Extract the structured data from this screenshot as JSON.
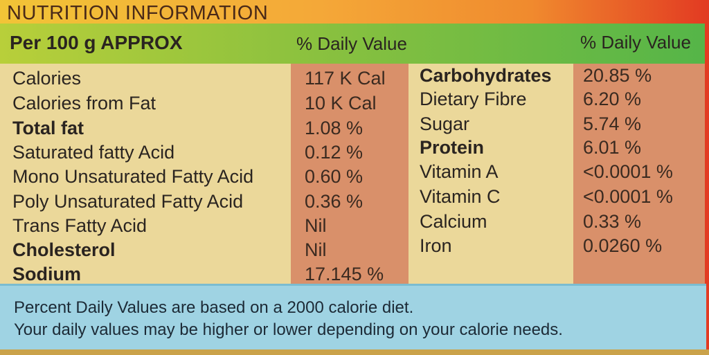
{
  "header": {
    "title": "NUTRITION INFORMATION",
    "per_label": "Per 100 g APPROX",
    "dv_label_left": "% Daily Value",
    "dv_label_right": "% Daily Value"
  },
  "left_nutrients": [
    {
      "name": "Calories",
      "value": "117 K Cal",
      "bold": false
    },
    {
      "name": "Calories from Fat",
      "value": "10 K Cal",
      "bold": false
    },
    {
      "name": "Total fat",
      "value": "1.08 %",
      "bold": true
    },
    {
      "name": "Saturated fatty Acid",
      "value": "0.12 %",
      "bold": false
    },
    {
      "name": "Mono Unsaturated Fatty Acid",
      "value": "0.60 %",
      "bold": false
    },
    {
      "name": "Poly Unsaturated Fatty Acid",
      "value": "0.36 %",
      "bold": false
    },
    {
      "name": "Trans Fatty Acid",
      "value": "Nil",
      "bold": false
    },
    {
      "name": "Cholesterol",
      "value": "Nil",
      "bold": true
    },
    {
      "name": "Sodium",
      "value": "17.145 %",
      "bold": true
    }
  ],
  "right_nutrients": [
    {
      "name": "Carbohydrates",
      "value": "20.85 %",
      "bold": true
    },
    {
      "name": "Dietary Fibre",
      "value": "6.20 %",
      "bold": false
    },
    {
      "name": "Sugar",
      "value": "5.74 %",
      "bold": false
    },
    {
      "name": "Protein",
      "value": "6.01 %",
      "bold": true
    },
    {
      "name": "Vitamin A",
      "value": "<0.0001 %",
      "bold": false
    },
    {
      "name": "Vitamin C",
      "value": "<0.0001 %",
      "bold": false
    },
    {
      "name": "Calcium",
      "value": "0.33 %",
      "bold": false
    },
    {
      "name": "Iron",
      "value": "0.0260 %",
      "bold": false
    }
  ],
  "footer": {
    "line1": "Percent Daily Values are based on a 2000 calorie diet.",
    "line2": "Your daily values may be higher or lower depending on your calorie needs."
  },
  "colors": {
    "green_bar": "#8fc23e",
    "value_column": "#d9906a",
    "table_bg": "#ebd89a",
    "footer_bg": "#9fd3e3"
  }
}
